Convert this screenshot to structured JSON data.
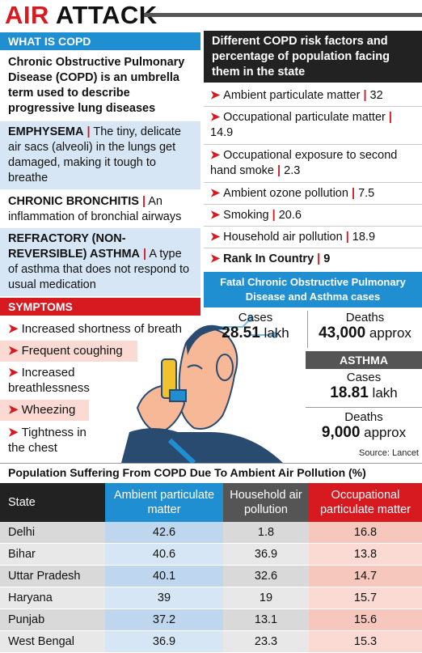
{
  "header": {
    "title_part1": "AIR",
    "title_part2": " ATTACK"
  },
  "copd": {
    "heading": "WHAT IS COPD",
    "definition": "Chronic Obstructive Pulmonary Disease (COPD) is an umbrella term used to describe progressive lung diseases",
    "types": [
      {
        "name": "EMPHYSEMA",
        "desc": "The tiny, delicate air sacs (alveoli) in the lungs get damaged, making it tough to breathe"
      },
      {
        "name": "CHRONIC BRONCHITIS",
        "desc": "An inflammation of bronchial airways"
      },
      {
        "name": "REFRACTORY (NON-REVERSIBLE) ASTHMA",
        "desc": "A type of asthma that does not respond to usual medication"
      }
    ]
  },
  "symptoms": {
    "heading": "SYMPTOMS",
    "items": [
      "Increased shortness of breath",
      "Frequent coughing",
      "Increased breathlessness",
      "Wheezing",
      "Tightness in the chest"
    ]
  },
  "risk": {
    "heading": "Different COPD risk factors and percentage of population facing them in the state",
    "items": [
      {
        "label": "Ambient particulate matter",
        "value": "32"
      },
      {
        "label": "Occupational particulate matter",
        "value": "14.9"
      },
      {
        "label": "Occupational exposure to second hand smoke",
        "value": "2.3"
      },
      {
        "label": "Ambient ozone pollution",
        "value": "7.5"
      },
      {
        "label": "Smoking",
        "value": "20.6"
      },
      {
        "label": "Household air pollution",
        "value": "18.9"
      },
      {
        "label": "Rank In Country",
        "value": "9"
      }
    ]
  },
  "fatal": {
    "heading": "Fatal Chronic Obstructive Pulmonary Disease and Asthma cases",
    "copd_cases_label": "Cases",
    "copd_cases_value": "28.51",
    "copd_cases_unit": " lakh",
    "copd_deaths_label": "Deaths",
    "copd_deaths_value": "43,000",
    "copd_deaths_unit": " approx",
    "asthma_heading": "ASTHMA",
    "asthma_cases_label": "Cases",
    "asthma_cases_value": "18.81",
    "asthma_cases_unit": " lakh",
    "asthma_deaths_label": "Deaths",
    "asthma_deaths_value": "9,000",
    "asthma_deaths_unit": " approx",
    "source": "Source: Lancet"
  },
  "table": {
    "title": "Population Suffering From COPD Due To Ambient Air Pollution (%)",
    "columns": [
      "State",
      "Ambient particulate matter",
      "Household air pollution",
      "Occupational particulate matter"
    ],
    "rows": [
      [
        "Delhi",
        "42.6",
        "1.8",
        "16.8"
      ],
      [
        "Bihar",
        "40.6",
        "36.9",
        "13.8"
      ],
      [
        "Uttar Pradesh",
        "40.1",
        "32.6",
        "14.7"
      ],
      [
        "Haryana",
        "39",
        "19",
        "15.7"
      ],
      [
        "Punjab",
        "37.2",
        "13.1",
        "15.6"
      ],
      [
        "West Bengal",
        "36.9",
        "23.3",
        "15.3"
      ]
    ]
  },
  "colors": {
    "red": "#d71920",
    "blue": "#1f8fd1",
    "dark": "#222222",
    "gray": "#555555"
  }
}
